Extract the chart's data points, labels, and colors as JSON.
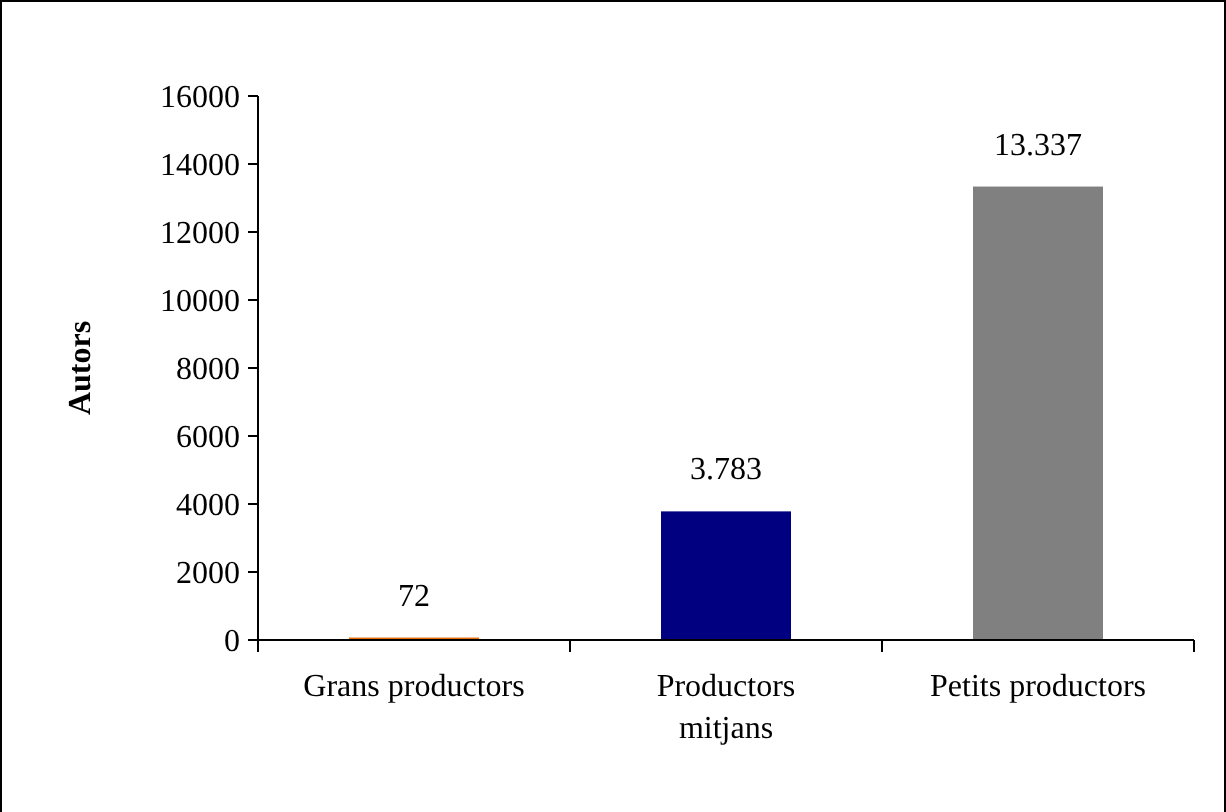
{
  "chart_data": {
    "type": "bar",
    "ylabel": "Autors",
    "categories": [
      "Grans productors",
      "Productors mitjans",
      "Petits productors"
    ],
    "values": [
      72,
      3783,
      13337
    ],
    "colors": [
      "#e46c0a",
      "#000080",
      "#808080"
    ],
    "value_labels": [
      "72",
      "3.783",
      "13.337"
    ],
    "ylim": [
      0,
      16000
    ],
    "yticks": [
      0,
      2000,
      4000,
      6000,
      8000,
      10000,
      12000,
      14000,
      16000
    ],
    "grid": false
  }
}
